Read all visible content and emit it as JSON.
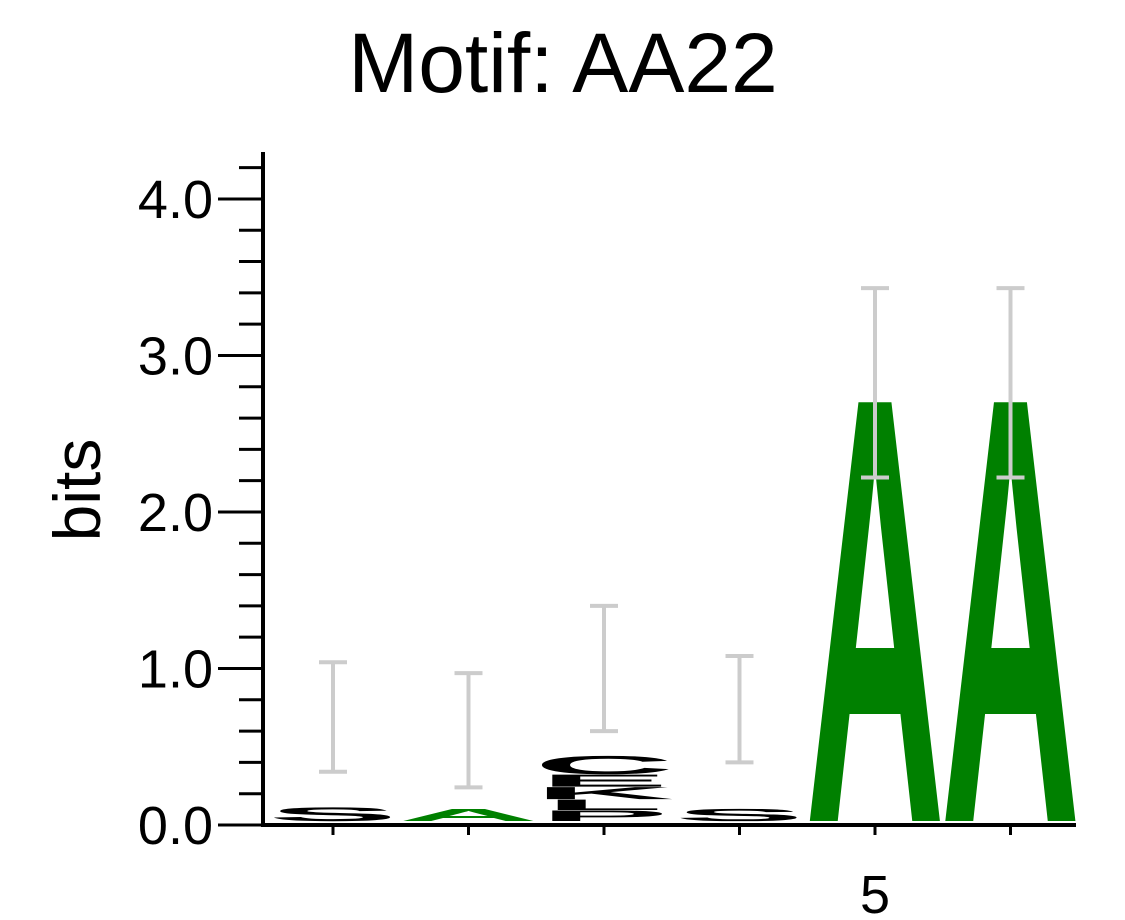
{
  "chart_data": {
    "type": "sequence-logo",
    "title": "Motif: AA22",
    "xlabel": "",
    "ylabel": "bits",
    "ylim": [
      0,
      4.3
    ],
    "yticks": [
      {
        "value": 0,
        "label": "0.0"
      },
      {
        "value": 1,
        "label": "1.0"
      },
      {
        "value": 2,
        "label": "2.0"
      },
      {
        "value": 3,
        "label": "3.0"
      },
      {
        "value": 4,
        "label": "4.0"
      }
    ],
    "ytick_minor_step": 0.2,
    "positions": [
      1,
      2,
      3,
      4,
      5,
      6
    ],
    "xtick_labels": [
      "",
      "",
      "",
      "",
      "5",
      ""
    ],
    "colors": {
      "A": "#008000",
      "C": "#000000",
      "G": "#0000ff",
      "T": "#008000",
      "U": "#000000"
    },
    "stacks": [
      {
        "position": 1,
        "letters": [
          {
            "letter": "S",
            "height": 0.09
          }
        ],
        "error": [
          0.34,
          1.04
        ]
      },
      {
        "position": 2,
        "letters": [
          {
            "letter": "A",
            "height": 0.08
          }
        ],
        "error": [
          0.24,
          0.97
        ]
      },
      {
        "position": 3,
        "letters": [
          {
            "letter": "P",
            "height": 0.07
          },
          {
            "letter": "L",
            "height": 0.07
          },
          {
            "letter": "K",
            "height": 0.08
          },
          {
            "letter": "E",
            "height": 0.08
          },
          {
            "letter": "C",
            "height": 0.12
          }
        ],
        "error": [
          0.6,
          1.4
        ]
      },
      {
        "position": 4,
        "letters": [
          {
            "letter": "S",
            "height": 0.08
          }
        ],
        "error": [
          0.4,
          1.08
        ]
      },
      {
        "position": 5,
        "letters": [
          {
            "letter": "A",
            "height": 2.8
          }
        ],
        "error": [
          2.22,
          3.43
        ]
      },
      {
        "position": 6,
        "letters": [
          {
            "letter": "A",
            "height": 2.8
          }
        ],
        "error": [
          2.22,
          3.43
        ]
      }
    ]
  }
}
